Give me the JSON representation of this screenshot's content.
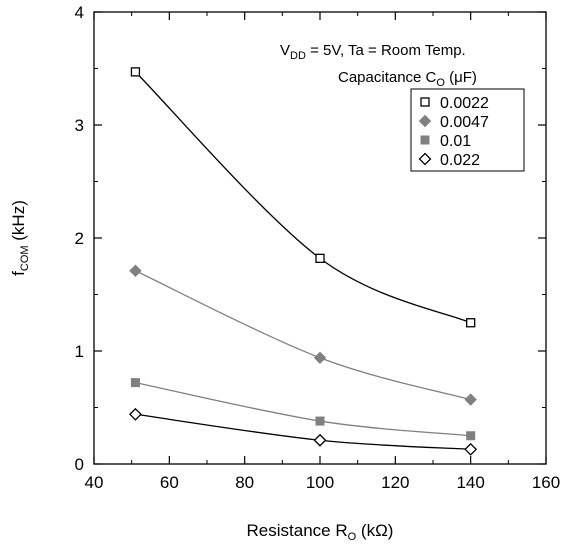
{
  "chart_data": {
    "type": "line",
    "x": [
      51,
      100,
      140
    ],
    "xlabel": {
      "text": "Resistance R",
      "sub": "O",
      "unit": " (kΩ)"
    },
    "ylabel": {
      "text": "f",
      "sub": "COM",
      "unit": " (kHz)"
    },
    "xlim": [
      40,
      160
    ],
    "ylim": [
      0,
      4
    ],
    "xticks": [
      "40",
      "60",
      "80",
      "100",
      "120",
      "140",
      "160"
    ],
    "yticks": [
      "0",
      "1",
      "2",
      "3",
      "4"
    ],
    "grid": false,
    "conditions": {
      "v_prefix": "V",
      "v_sub": "DD",
      "rest": " = 5V, Ta = Room Temp."
    },
    "legend": {
      "title_text": "Capacitance C",
      "title_sub": "O",
      "title_unit": " (μF)",
      "placement": "top-right"
    },
    "series": [
      {
        "name": "0.0022",
        "marker": "open-square",
        "color": "#000000",
        "values": [
          3.47,
          1.82,
          1.25
        ]
      },
      {
        "name": "0.0047",
        "marker": "filled-diamond",
        "color": "#808080",
        "values": [
          1.71,
          0.94,
          0.57
        ]
      },
      {
        "name": "0.01",
        "marker": "filled-square",
        "color": "#808080",
        "values": [
          0.72,
          0.38,
          0.25
        ]
      },
      {
        "name": "0.022",
        "marker": "open-diamond",
        "color": "#000000",
        "values": [
          0.44,
          0.21,
          0.13
        ]
      }
    ]
  }
}
